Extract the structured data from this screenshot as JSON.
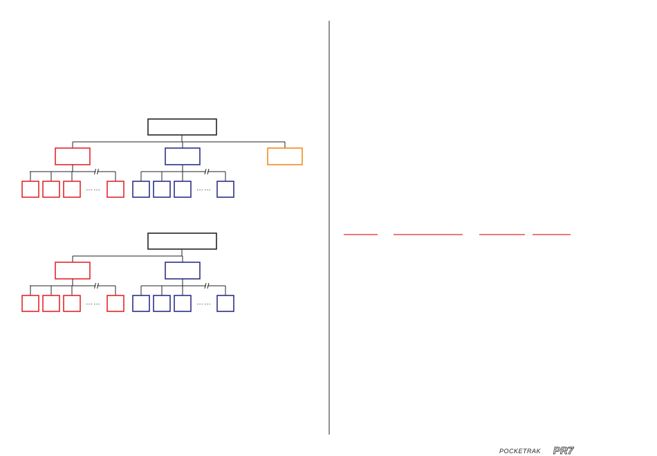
{
  "footer": {
    "brand": "POCKETRAK",
    "model": "PR7"
  }
}
